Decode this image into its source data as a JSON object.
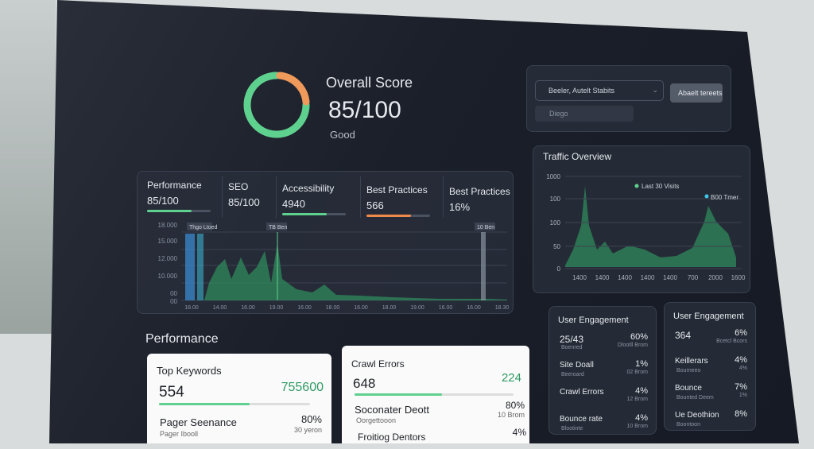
{
  "score": {
    "title": "Overall Score",
    "value": "85/100",
    "rating": "Good"
  },
  "search": {
    "select": "Beeler, Autelt Stabits",
    "button": "Abaelt tereets",
    "input": "Diego"
  },
  "metrics": [
    {
      "label": "Performance",
      "value": "85/100"
    },
    {
      "label": "SEO",
      "value": "85/100"
    },
    {
      "label": "Accessibility",
      "value": "4940"
    },
    {
      "label": "Best Practices",
      "value": "566"
    },
    {
      "label": "Best Practices",
      "value": "16%"
    }
  ],
  "main_chart": {
    "y_labels": [
      "18.000",
      "15.000",
      "12.000",
      "10.000",
      "00",
      "00"
    ],
    "x_labels": [
      "18.00",
      "14.00",
      "16.00",
      "19.00",
      "16.00",
      "18.00",
      "16.00",
      "18.00",
      "19.00",
      "16.00",
      "16.00",
      "18.30"
    ],
    "markers": [
      "Thgo Ltoed",
      "TB Ben",
      "10 Ben"
    ]
  },
  "traffic": {
    "title": "Traffic Overview",
    "legend": [
      "Last 30 Visits",
      "B00 Tmer"
    ],
    "y_labels": [
      "1000",
      "100",
      "100",
      "50",
      "0"
    ],
    "x_labels": [
      "1400",
      "1400",
      "1400",
      "1400",
      "1400",
      "700",
      "2000",
      "1600"
    ]
  },
  "section_title": "Performance",
  "top_keywords": {
    "title": "Top Keywords",
    "value": "554",
    "value2": "755600",
    "rows": [
      {
        "label": "Pager Seenance",
        "sub": "Pager Ibooll",
        "value": "80%",
        "sub_value": "30 yeron"
      }
    ]
  },
  "crawl_errors": {
    "title": "Crawl Errors",
    "value": "648",
    "value2": "224",
    "rows": [
      {
        "label": "Soconater Deott",
        "sub": "Oorgettooon",
        "value": "80%",
        "sub_value": "10 Brom"
      },
      {
        "label": "Froitiog Dentors",
        "value": "4%"
      }
    ]
  },
  "engagement": [
    {
      "title": "User Engagement",
      "rows": [
        {
          "label": "25/43",
          "sub": "Boenred",
          "value": "60%",
          "sub_value": "Dlootll Brom"
        },
        {
          "label": "Site Doall",
          "sub": "Beeroard",
          "value": "1%",
          "sub_value": "02 Brom"
        },
        {
          "label": "Crawl Errors",
          "value": "4%",
          "sub_value": "12 Brom"
        },
        {
          "label": "Bounce rate",
          "sub": "Blootinte",
          "value": "4%",
          "sub_value": "10 Brom"
        }
      ]
    },
    {
      "title": "User Engagement",
      "rows": [
        {
          "label": "364",
          "value": "6%",
          "sub_value": "Bcetcl Bcors"
        },
        {
          "label": "Keillerars",
          "sub": "Bourneeo",
          "value": "4%",
          "sub_value": "4%"
        },
        {
          "label": "Bounce",
          "sub": "Bounted Deem",
          "value": "7%",
          "sub_value": "1%"
        },
        {
          "label": "Ue Deothion",
          "sub": "Boontoon",
          "value": "8%"
        }
      ]
    }
  ]
}
